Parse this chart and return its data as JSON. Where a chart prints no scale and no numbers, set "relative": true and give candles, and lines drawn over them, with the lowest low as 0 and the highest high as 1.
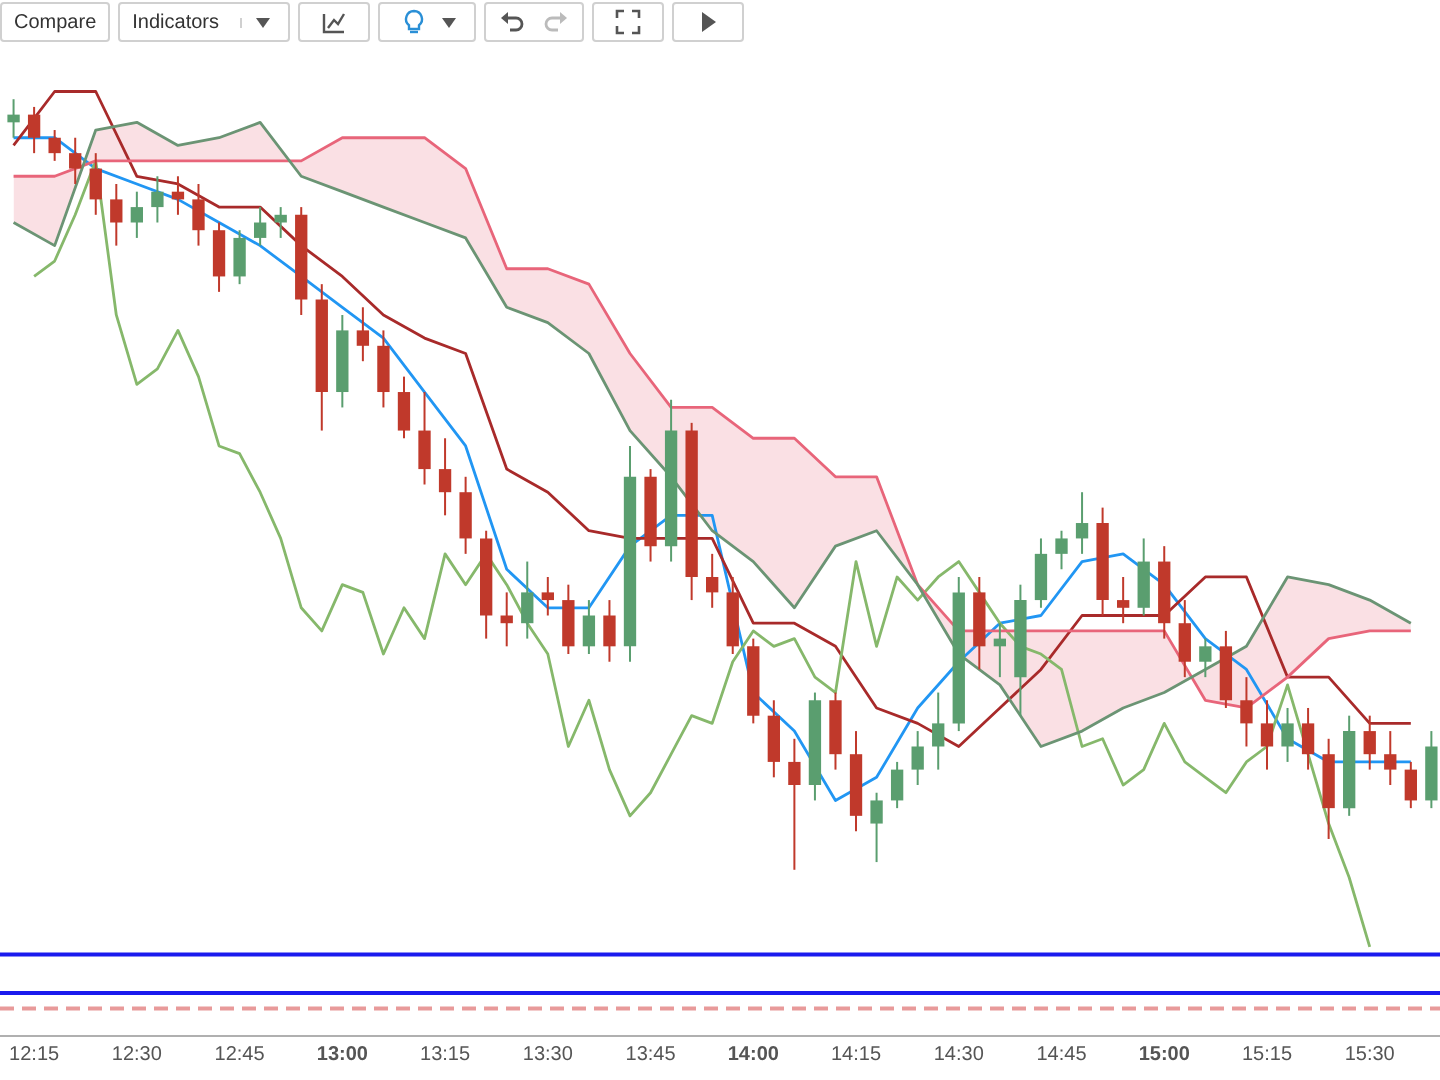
{
  "chart_data": {
    "type": "candlestick",
    "relative": true,
    "annotations": [
      "Compare",
      "Indicators"
    ],
    "xlim": [
      12.167,
      15.671
    ],
    "xticks": [
      {
        "value": 12.25,
        "label": "12:15"
      },
      {
        "value": 12.5,
        "label": "12:30"
      },
      {
        "value": 12.75,
        "label": "12:45"
      },
      {
        "value": 13,
        "label": "13:00"
      },
      {
        "value": 13.25,
        "label": "13:15"
      },
      {
        "value": 13.5,
        "label": "13:30"
      },
      {
        "value": 13.75,
        "label": "13:45"
      },
      {
        "value": 14,
        "label": "14:00"
      },
      {
        "value": 14.25,
        "label": "14:15"
      },
      {
        "value": 14.5,
        "label": "14:30"
      },
      {
        "value": 14.75,
        "label": "14:45"
      },
      {
        "value": 15,
        "label": "15:00"
      },
      {
        "value": 15.25,
        "label": "15:15"
      },
      {
        "value": 15.5,
        "label": "15:30"
      }
    ],
    "x": [
      12.2,
      12.25,
      12.3,
      12.35,
      12.4,
      12.45,
      12.5,
      12.55,
      12.6,
      12.65,
      12.7,
      12.75,
      12.8,
      12.85,
      12.9,
      12.95,
      13,
      13.05,
      13.1,
      13.15,
      13.2,
      13.25,
      13.3,
      13.35,
      13.4,
      13.45,
      13.5,
      13.55,
      13.6,
      13.65,
      13.7,
      13.75,
      13.8,
      13.85,
      13.9,
      13.95,
      14,
      14.05,
      14.1,
      14.15,
      14.2,
      14.25,
      14.3,
      14.35,
      14.4,
      14.45,
      14.5,
      14.55,
      14.6,
      14.65,
      14.7,
      14.75,
      14.8,
      14.85,
      14.9,
      14.95,
      15,
      15.05,
      15.1,
      15.15,
      15.2,
      15.25,
      15.3,
      15.35,
      15.4,
      15.45,
      15.5,
      15.55,
      15.6,
      15.65
    ],
    "ohlc": [
      [
        0.97,
        1,
        0.95,
        0.98
      ],
      [
        0.98,
        0.99,
        0.93,
        0.95
      ],
      [
        0.95,
        0.96,
        0.92,
        0.93
      ],
      [
        0.93,
        0.95,
        0.89,
        0.91
      ],
      [
        0.91,
        0.93,
        0.85,
        0.87
      ],
      [
        0.87,
        0.89,
        0.81,
        0.84
      ],
      [
        0.84,
        0.88,
        0.82,
        0.86
      ],
      [
        0.86,
        0.9,
        0.84,
        0.88
      ],
      [
        0.88,
        0.9,
        0.85,
        0.87
      ],
      [
        0.87,
        0.89,
        0.81,
        0.83
      ],
      [
        0.83,
        0.84,
        0.75,
        0.77
      ],
      [
        0.77,
        0.83,
        0.76,
        0.82
      ],
      [
        0.82,
        0.86,
        0.81,
        0.84
      ],
      [
        0.84,
        0.86,
        0.82,
        0.85
      ],
      [
        0.85,
        0.86,
        0.72,
        0.74
      ],
      [
        0.74,
        0.76,
        0.57,
        0.62
      ],
      [
        0.62,
        0.72,
        0.6,
        0.7
      ],
      [
        0.7,
        0.73,
        0.66,
        0.68
      ],
      [
        0.68,
        0.7,
        0.6,
        0.62
      ],
      [
        0.62,
        0.64,
        0.56,
        0.57
      ],
      [
        0.57,
        0.62,
        0.5,
        0.52
      ],
      [
        0.52,
        0.56,
        0.46,
        0.49
      ],
      [
        0.49,
        0.51,
        0.41,
        0.43
      ],
      [
        0.43,
        0.44,
        0.3,
        0.33
      ],
      [
        0.33,
        0.36,
        0.29,
        0.32
      ],
      [
        0.32,
        0.4,
        0.3,
        0.36
      ],
      [
        0.36,
        0.38,
        0.33,
        0.35
      ],
      [
        0.35,
        0.37,
        0.28,
        0.29
      ],
      [
        0.29,
        0.35,
        0.28,
        0.33
      ],
      [
        0.33,
        0.35,
        0.27,
        0.29
      ],
      [
        0.29,
        0.55,
        0.27,
        0.51
      ],
      [
        0.51,
        0.52,
        0.4,
        0.42
      ],
      [
        0.42,
        0.61,
        0.4,
        0.57
      ],
      [
        0.57,
        0.58,
        0.35,
        0.38
      ],
      [
        0.38,
        0.41,
        0.34,
        0.36
      ],
      [
        0.36,
        0.38,
        0.28,
        0.29
      ],
      [
        0.29,
        0.3,
        0.19,
        0.2
      ],
      [
        0.2,
        0.22,
        0.12,
        0.14
      ],
      [
        0.14,
        0.17,
        0,
        0.11
      ],
      [
        0.11,
        0.23,
        0.09,
        0.22
      ],
      [
        0.22,
        0.23,
        0.13,
        0.15
      ],
      [
        0.15,
        0.18,
        0.05,
        0.07
      ],
      [
        0.06,
        0.1,
        0.01,
        0.09
      ],
      [
        0.09,
        0.14,
        0.08,
        0.13
      ],
      [
        0.13,
        0.18,
        0.11,
        0.16
      ],
      [
        0.16,
        0.23,
        0.13,
        0.19
      ],
      [
        0.19,
        0.38,
        0.18,
        0.36
      ],
      [
        0.36,
        0.38,
        0.26,
        0.29
      ],
      [
        0.29,
        0.32,
        0.25,
        0.3
      ],
      [
        0.25,
        0.37,
        0.2,
        0.35
      ],
      [
        0.35,
        0.43,
        0.34,
        0.41
      ],
      [
        0.41,
        0.44,
        0.39,
        0.43
      ],
      [
        0.43,
        0.49,
        0.41,
        0.45
      ],
      [
        0.45,
        0.47,
        0.33,
        0.35
      ],
      [
        0.35,
        0.38,
        0.32,
        0.34
      ],
      [
        0.34,
        0.43,
        0.33,
        0.4
      ],
      [
        0.4,
        0.42,
        0.3,
        0.32
      ],
      [
        0.32,
        0.35,
        0.25,
        0.27
      ],
      [
        0.27,
        0.3,
        0.25,
        0.29
      ],
      [
        0.29,
        0.31,
        0.21,
        0.22
      ],
      [
        0.22,
        0.25,
        0.16,
        0.19
      ],
      [
        0.19,
        0.22,
        0.13,
        0.16
      ],
      [
        0.16,
        0.21,
        0.14,
        0.19
      ],
      [
        0.19,
        0.21,
        0.13,
        0.15
      ],
      [
        0.15,
        0.17,
        0.04,
        0.08
      ],
      [
        0.08,
        0.2,
        0.07,
        0.18
      ],
      [
        0.18,
        0.2,
        0.13,
        0.15
      ],
      [
        0.15,
        0.18,
        0.11,
        0.13
      ],
      [
        0.13,
        0.14,
        0.08,
        0.09
      ],
      [
        0.09,
        0.18,
        0.08,
        0.16
      ]
    ],
    "colors": [
      "#5a9e6f",
      "#c0392b",
      "#c0392b",
      "#c0392b",
      "#c0392b",
      "#c0392b",
      "#5a9e6f",
      "#5a9e6f",
      "#c0392b",
      "#c0392b",
      "#c0392b",
      "#5a9e6f",
      "#5a9e6f",
      "#5a9e6f",
      "#c0392b",
      "#c0392b",
      "#5a9e6f",
      "#c0392b",
      "#c0392b",
      "#c0392b",
      "#c0392b",
      "#c0392b",
      "#c0392b",
      "#c0392b",
      "#c0392b",
      "#5a9e6f",
      "#c0392b",
      "#c0392b",
      "#5a9e6f",
      "#c0392b",
      "#5a9e6f",
      "#c0392b",
      "#5a9e6f",
      "#c0392b",
      "#c0392b",
      "#c0392b",
      "#c0392b",
      "#c0392b",
      "#c0392b",
      "#5a9e6f",
      "#c0392b",
      "#c0392b",
      "#5a9e6f",
      "#5a9e6f",
      "#5a9e6f",
      "#5a9e6f",
      "#5a9e6f",
      "#c0392b",
      "#5a9e6f",
      "#5a9e6f",
      "#5a9e6f",
      "#5a9e6f",
      "#5a9e6f",
      "#c0392b",
      "#c0392b",
      "#5a9e6f",
      "#c0392b",
      "#c0392b",
      "#5a9e6f",
      "#c0392b",
      "#c0392b",
      "#c0392b",
      "#5a9e6f",
      "#c0392b",
      "#c0392b",
      "#5a9e6f",
      "#c0392b",
      "#c0392b",
      "#c0392b",
      "#5a9e6f"
    ],
    "series": [
      {
        "type": "line",
        "color": "#6b9474",
        "x": [
          12.2,
          12.3,
          12.4,
          12.5,
          12.6,
          12.7,
          12.8,
          12.9,
          13,
          13.1,
          13.2,
          13.3,
          13.4,
          13.5,
          13.6,
          13.7,
          13.8,
          13.9,
          14,
          14.1,
          14.2,
          14.3,
          14.4,
          14.5,
          14.6,
          14.7,
          14.8,
          14.9,
          15,
          15.1,
          15.2,
          15.3,
          15.4,
          15.5,
          15.6
        ],
        "values": [
          0.84,
          0.81,
          0.96,
          0.97,
          0.94,
          0.95,
          0.97,
          0.9,
          0.88,
          0.86,
          0.84,
          0.82,
          0.73,
          0.71,
          0.67,
          0.57,
          0.51,
          0.44,
          0.4,
          0.34,
          0.42,
          0.44,
          0.37,
          0.28,
          0.24,
          0.16,
          0.18,
          0.21,
          0.23,
          0.26,
          0.29,
          0.38,
          0.37,
          0.35,
          0.32
        ]
      },
      {
        "type": "line",
        "color": "#e8657a",
        "x": [
          12.2,
          12.3,
          12.4,
          12.5,
          12.6,
          12.7,
          12.8,
          12.9,
          13,
          13.1,
          13.2,
          13.3,
          13.4,
          13.5,
          13.6,
          13.7,
          13.8,
          13.9,
          14,
          14.1,
          14.2,
          14.3,
          14.4,
          14.5,
          14.6,
          14.7,
          14.8,
          14.9,
          15,
          15.1,
          15.2,
          15.3,
          15.4,
          15.5,
          15.6
        ],
        "values": [
          0.9,
          0.9,
          0.92,
          0.92,
          0.92,
          0.92,
          0.92,
          0.92,
          0.95,
          0.95,
          0.95,
          0.91,
          0.78,
          0.78,
          0.76,
          0.67,
          0.6,
          0.6,
          0.56,
          0.56,
          0.51,
          0.51,
          0.37,
          0.31,
          0.31,
          0.31,
          0.31,
          0.31,
          0.31,
          0.22,
          0.21,
          0.25,
          0.3,
          0.31,
          0.31
        ],
        "lower": [
          0.84,
          0.81,
          0.96,
          0.97,
          0.94,
          0.95,
          0.97,
          0.9,
          0.88,
          0.86,
          0.84,
          0.82,
          0.73,
          0.71,
          0.67,
          0.57,
          0.51,
          0.44,
          0.4,
          0.34,
          0.42,
          0.44,
          0.37,
          0.28,
          0.24,
          0.16,
          0.18,
          0.21,
          0.23,
          0.26,
          0.29,
          0.38,
          0.37,
          0.35,
          0.32
        ],
        "upper": [
          0.9,
          0.9,
          0.92,
          0.92,
          0.92,
          0.92,
          0.92,
          0.92,
          0.95,
          0.95,
          0.95,
          0.91,
          0.78,
          0.78,
          0.76,
          0.67,
          0.6,
          0.6,
          0.56,
          0.56,
          0.51,
          0.51,
          0.37,
          0.31,
          0.31,
          0.31,
          0.31,
          0.31,
          0.31,
          0.22,
          0.21,
          0.25,
          0.3,
          0.31,
          0.31
        ]
      },
      {
        "type": "line",
        "color": "#86b86b",
        "x": [
          12.25,
          12.3,
          12.35,
          12.4,
          12.45,
          12.5,
          12.55,
          12.6,
          12.65,
          12.7,
          12.75,
          12.8,
          12.85,
          12.9,
          12.95,
          13,
          13.05,
          13.1,
          13.15,
          13.2,
          13.25,
          13.3,
          13.35,
          13.4,
          13.45,
          13.5,
          13.55,
          13.6,
          13.65,
          13.7,
          13.75,
          13.8,
          13.85,
          13.9,
          13.95,
          14,
          14.05,
          14.1,
          14.15,
          14.2,
          14.25,
          14.3,
          14.35,
          14.4,
          14.45,
          14.5,
          14.55,
          14.6,
          14.65,
          14.7,
          14.75,
          14.8,
          14.85,
          14.9,
          14.95,
          15,
          15.05,
          15.1,
          15.15,
          15.2,
          15.25,
          15.3,
          15.35,
          15.4,
          15.45,
          15.5
        ],
        "values": [
          0.77,
          0.79,
          0.85,
          0.92,
          0.72,
          0.63,
          0.65,
          0.7,
          0.64,
          0.55,
          0.54,
          0.49,
          0.43,
          0.34,
          0.31,
          0.37,
          0.36,
          0.28,
          0.34,
          0.3,
          0.41,
          0.37,
          0.41,
          0.37,
          0.32,
          0.28,
          0.16,
          0.22,
          0.13,
          0.07,
          0.1,
          0.15,
          0.2,
          0.19,
          0.27,
          0.31,
          0.29,
          0.3,
          0.25,
          0.23,
          0.4,
          0.29,
          0.38,
          0.35,
          0.38,
          0.4,
          0.36,
          0.32,
          0.29,
          0.28,
          0.26,
          0.16,
          0.17,
          0.11,
          0.13,
          0.19,
          0.14,
          0.12,
          0.1,
          0.14,
          0.16,
          0.24,
          0.15,
          0.06,
          -0.01,
          -0.1
        ]
      },
      {
        "type": "line",
        "color": "#a82a2a",
        "x": [
          12.2,
          12.3,
          12.4,
          12.5,
          12.6,
          12.7,
          12.8,
          12.9,
          13,
          13.1,
          13.2,
          13.3,
          13.4,
          13.5,
          13.6,
          13.7,
          13.8,
          13.9,
          14,
          14.1,
          14.2,
          14.3,
          14.4,
          14.5,
          14.6,
          14.7,
          14.8,
          14.9,
          15,
          15.1,
          15.2,
          15.3,
          15.4,
          15.5,
          15.6
        ],
        "values": [
          0.94,
          1.01,
          1.01,
          0.9,
          0.89,
          0.86,
          0.86,
          0.81,
          0.77,
          0.72,
          0.69,
          0.67,
          0.52,
          0.49,
          0.44,
          0.43,
          0.43,
          0.43,
          0.32,
          0.32,
          0.29,
          0.21,
          0.19,
          0.16,
          0.21,
          0.26,
          0.33,
          0.33,
          0.33,
          0.38,
          0.38,
          0.25,
          0.25,
          0.19,
          0.19
        ]
      },
      {
        "type": "line",
        "color": "#2196f3",
        "x": [
          12.2,
          12.3,
          12.4,
          12.5,
          12.6,
          12.7,
          12.8,
          12.9,
          13,
          13.1,
          13.2,
          13.3,
          13.4,
          13.5,
          13.6,
          13.7,
          13.8,
          13.9,
          14,
          14.1,
          14.2,
          14.3,
          14.4,
          14.5,
          14.6,
          14.7,
          14.8,
          14.9,
          15,
          15.1,
          15.2,
          15.3,
          15.4,
          15.5,
          15.6
        ],
        "values": [
          0.95,
          0.95,
          0.91,
          0.89,
          0.87,
          0.84,
          0.81,
          0.77,
          0.73,
          0.69,
          0.62,
          0.55,
          0.39,
          0.34,
          0.34,
          0.42,
          0.46,
          0.46,
          0.23,
          0.18,
          0.09,
          0.12,
          0.21,
          0.27,
          0.32,
          0.33,
          0.4,
          0.41,
          0.37,
          0.3,
          0.26,
          0.17,
          0.14,
          0.14,
          0.14
        ]
      }
    ],
    "ref_lines": [
      {
        "axis": "y",
        "value": -0.11,
        "color": "#1a1aee"
      },
      {
        "axis": "y",
        "value": -0.16,
        "color": "#1a1aee"
      },
      {
        "axis": "y",
        "value": -0.18,
        "color": "#e89a9a",
        "line_style": "dashed"
      }
    ]
  }
}
